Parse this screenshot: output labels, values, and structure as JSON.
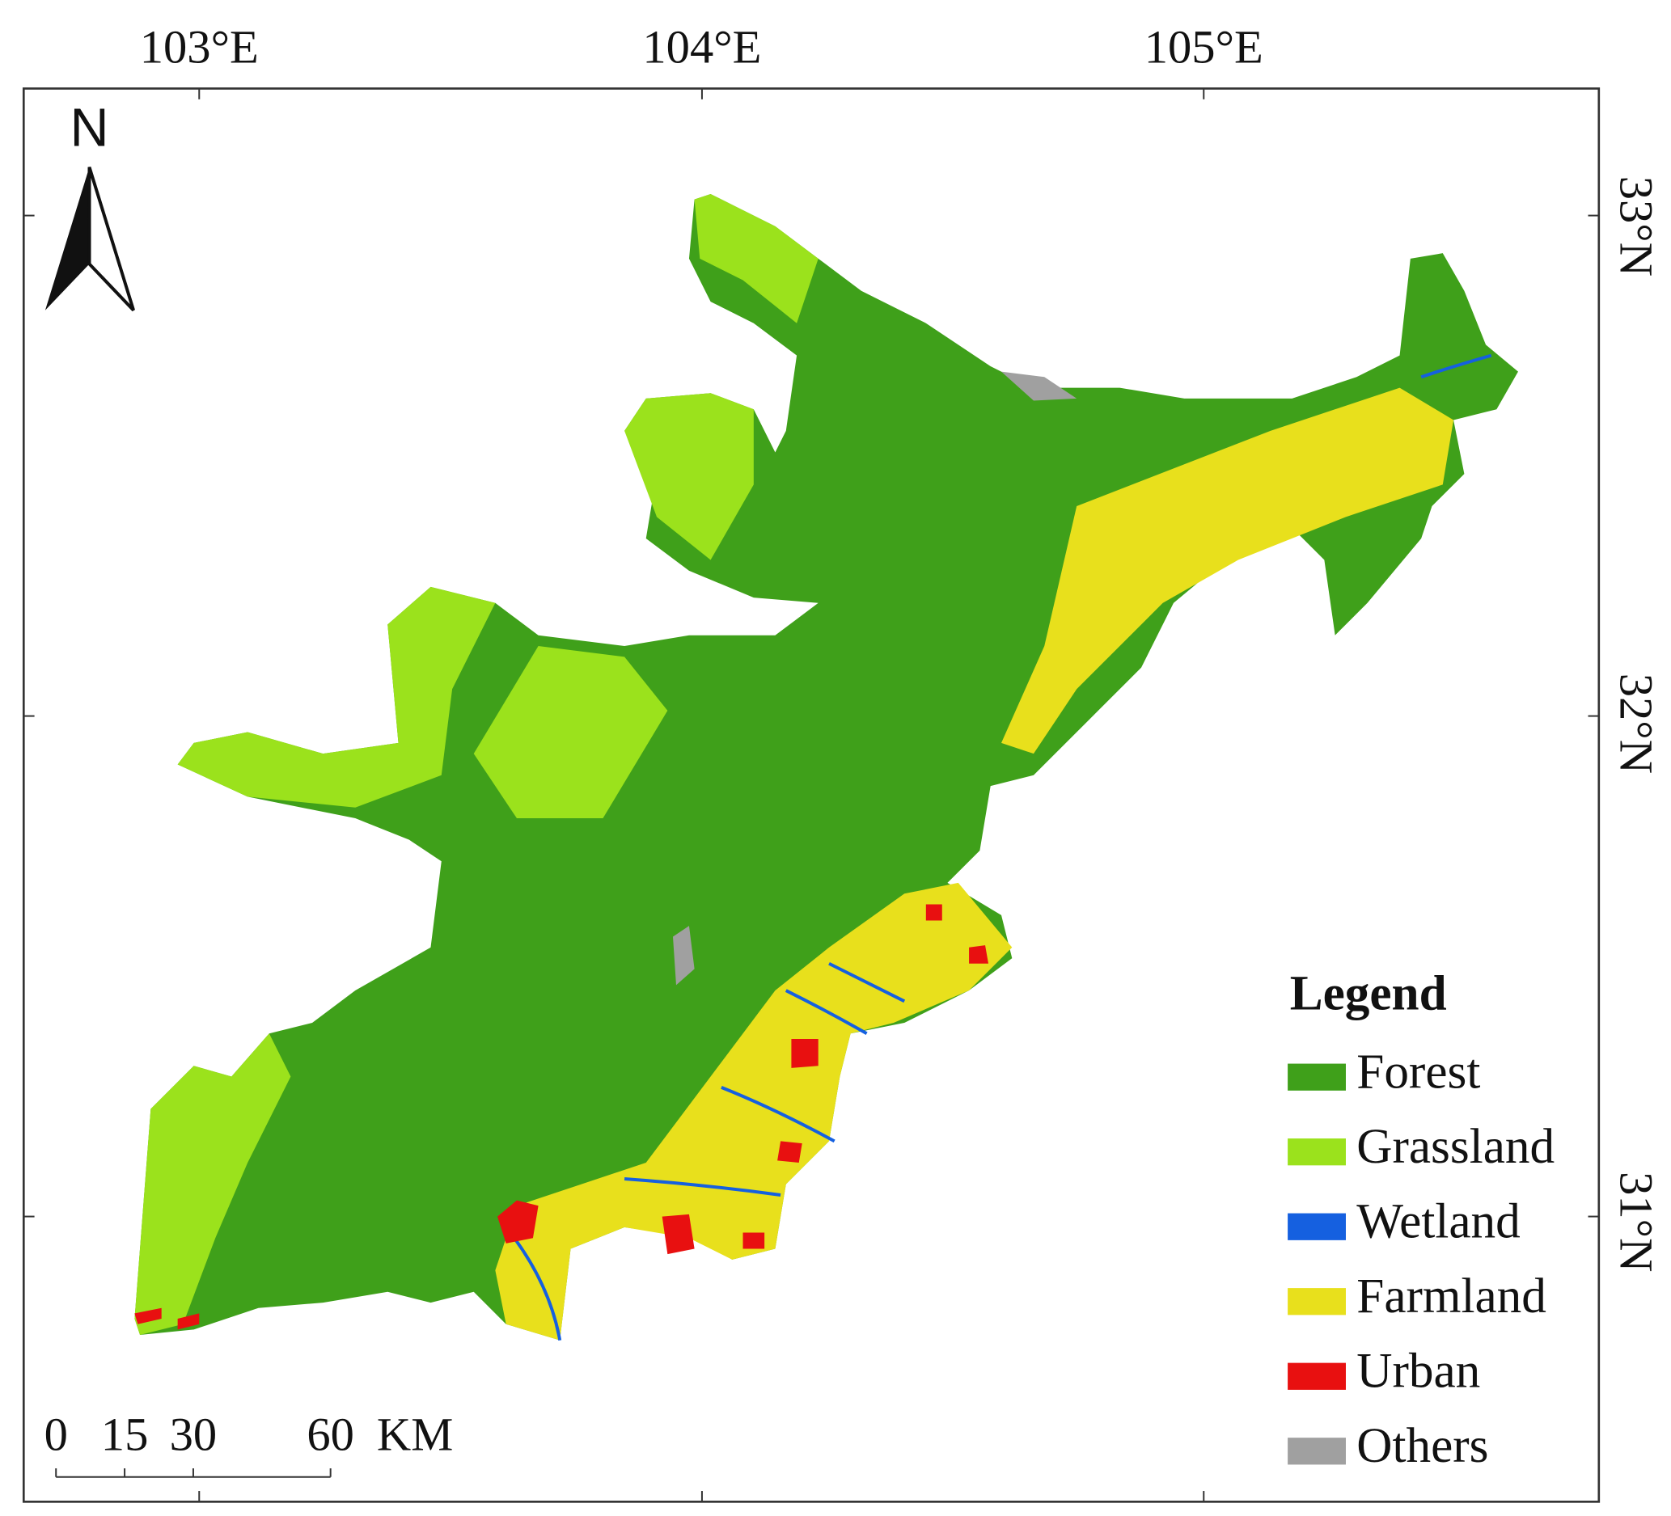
{
  "north": "N",
  "longitudes": [
    "103°E",
    "104°E",
    "105°E"
  ],
  "latitudes": [
    "33°N",
    "32°N",
    "31°N"
  ],
  "legend": {
    "title": "Legend",
    "items": [
      {
        "name": "Forest",
        "color": "#3fa01a"
      },
      {
        "name": "Grassland",
        "color": "#9be21c"
      },
      {
        "name": "Wetland",
        "color": "#1560e0"
      },
      {
        "name": "Farmland",
        "color": "#e8e01c"
      },
      {
        "name": "Urban",
        "color": "#e81010"
      },
      {
        "name": "Others",
        "color": "#a0a0a0"
      }
    ]
  },
  "scale_bar": {
    "values": [
      0,
      15,
      30,
      60
    ],
    "unit": "KM"
  }
}
